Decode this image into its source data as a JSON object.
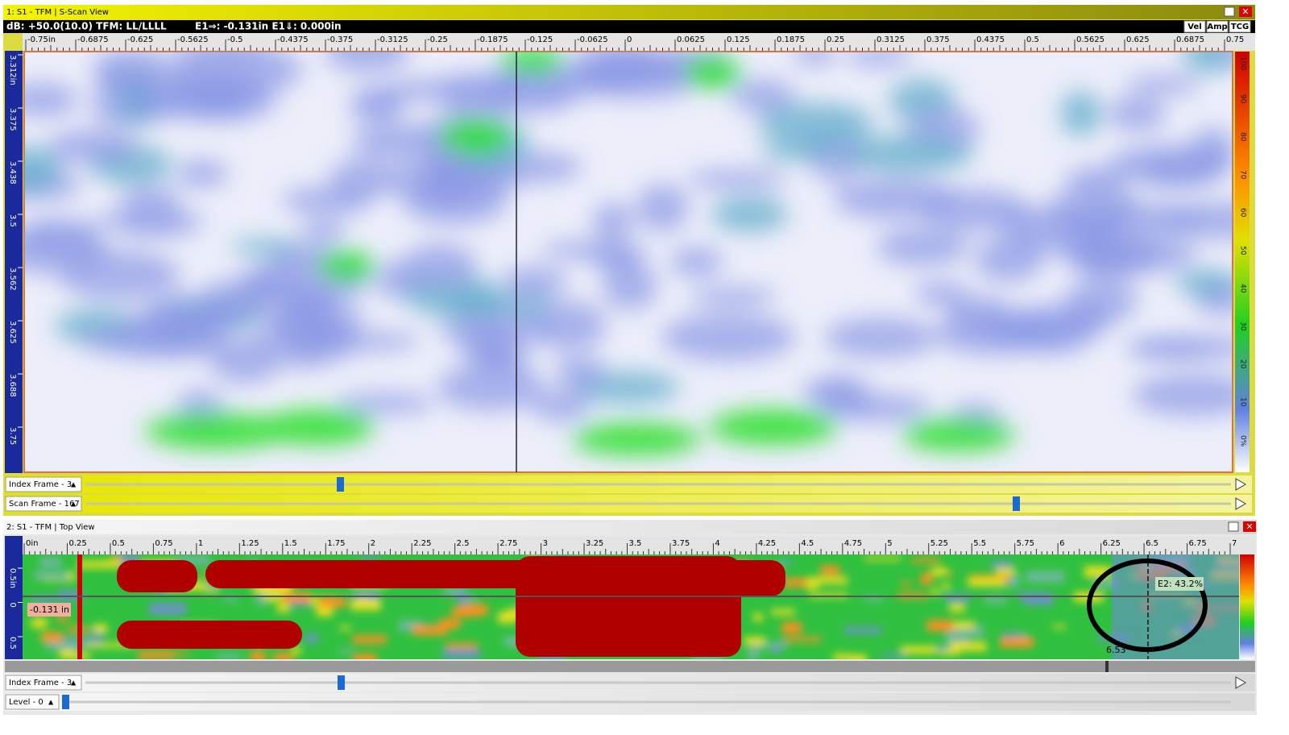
{
  "sscan": {
    "title": "1: S1 - TFM | S-Scan View",
    "status_left": "dB: +50.0(10.0)   TFM: LL/LLLL",
    "status_cursor": "E1⇒: -0.131in E1⇓: 0.000in",
    "buttons": [
      "Vel",
      "Amp",
      "TCG"
    ],
    "ruler_top": [
      "-0.75in",
      "-0.6875",
      "-0.625",
      "-0.5625",
      "-0.5",
      "-0.4375",
      "-0.375",
      "-0.3125",
      "-0.25",
      "-0.1875",
      "-0.125",
      "-0.0625",
      "0",
      "0.0625",
      "0.125",
      "0.1875",
      "0.25",
      "0.3125",
      "0.375",
      "0.4375",
      "0.5",
      "0.5625",
      "0.625",
      "0.6875",
      "0.75"
    ],
    "ruler_left": [
      "3.312in",
      "3.375",
      "3.438",
      "3.5",
      "3.562",
      "3.625",
      "3.688",
      "3.75"
    ],
    "color_scale": [
      "100",
      "90",
      "80",
      "70",
      "60",
      "50",
      "40",
      "30",
      "20",
      "10",
      "0%"
    ],
    "sliders": [
      "Index Frame - 3",
      "Scan Frame - 167"
    ]
  },
  "topview": {
    "title": "2: S1 - TFM | Top View",
    "ruler_top": [
      "0in",
      "0.25",
      "0.5",
      "0.75",
      "1",
      "1.25",
      "1.5",
      "1.75",
      "2",
      "2.25",
      "2.5",
      "2.75",
      "3",
      "3.25",
      "3.5",
      "3.75",
      "4",
      "4.25",
      "4.5",
      "4.75",
      "5",
      "5.25",
      "5.5",
      "5.75",
      "6",
      "6.25",
      "6.5",
      "6.75",
      "7"
    ],
    "ruler_left": [
      "0.5in",
      "0",
      "0.5"
    ],
    "cursor_label": "-0.131 in",
    "gate_label": "E2: 43.2%",
    "position_label": "6.53",
    "sliders": [
      "Index Frame - 3",
      "Level - 0"
    ]
  }
}
